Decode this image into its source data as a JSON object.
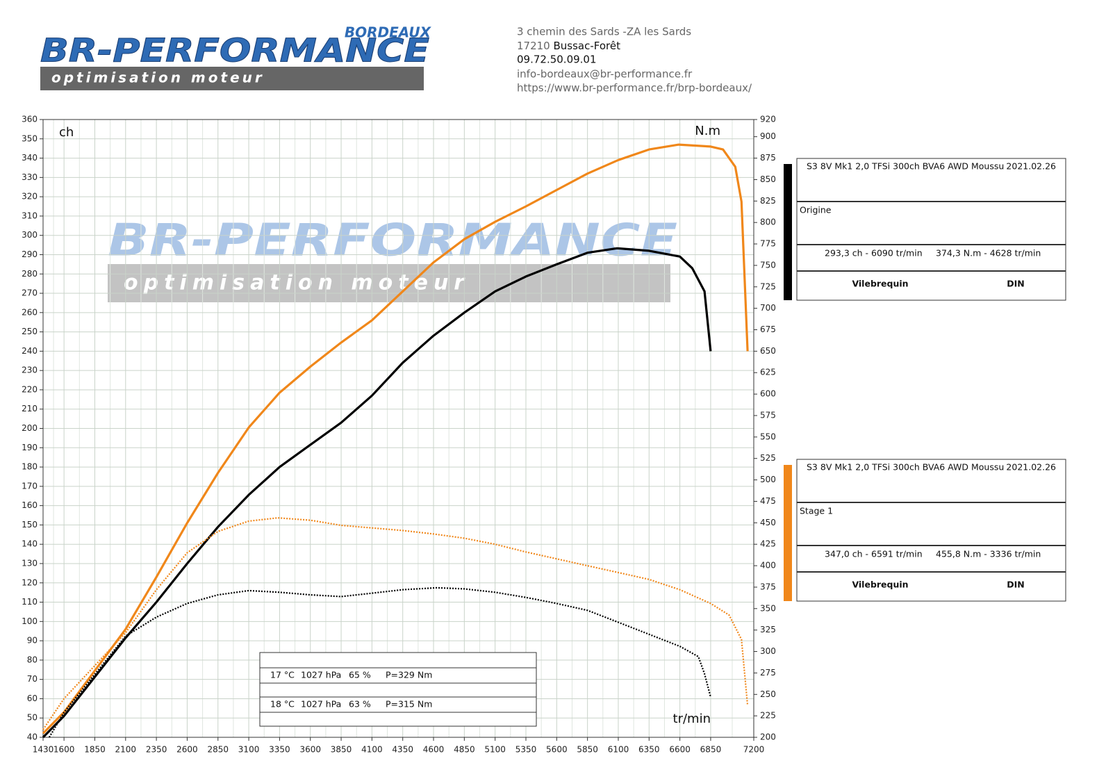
{
  "header": {
    "logo": {
      "city": "BORDEAUX",
      "brand": "BR-PERFORMANCE",
      "tagline": "optimisation moteur"
    },
    "address": {
      "street": "3 chemin des Sards -ZA les Sards",
      "zip": "17210",
      "city": "Bussac-Forêt",
      "phone": "09.72.50.09.01",
      "email": "info-bordeaux@br-performance.fr",
      "web": "https://www.br-performance.fr/brp-bordeaux/"
    }
  },
  "chart_data": {
    "type": "line",
    "ylabel": "ch",
    "y2label": "N.m",
    "xlabel": "tr/min",
    "grid": true,
    "xlim": [
      1430,
      7200
    ],
    "xticks": [
      1430,
      1600,
      1850,
      2100,
      2350,
      2600,
      2850,
      3100,
      3350,
      3600,
      3850,
      4100,
      4350,
      4600,
      4850,
      5100,
      5350,
      5600,
      5850,
      6100,
      6350,
      6600,
      6850,
      7200
    ],
    "ylim": [
      40,
      360
    ],
    "yticks": [
      40,
      50,
      60,
      70,
      80,
      90,
      100,
      110,
      120,
      130,
      140,
      150,
      160,
      170,
      180,
      190,
      200,
      210,
      220,
      230,
      240,
      250,
      260,
      270,
      280,
      290,
      300,
      310,
      320,
      330,
      340,
      350,
      360
    ],
    "y2lim": [
      200,
      920
    ],
    "y2ticks": [
      200,
      225,
      250,
      275,
      300,
      325,
      350,
      375,
      400,
      425,
      450,
      475,
      500,
      525,
      550,
      575,
      600,
      625,
      650,
      675,
      700,
      725,
      750,
      775,
      800,
      825,
      850,
      875,
      900,
      920
    ],
    "series": [
      {
        "color": "#000000",
        "style": "solid",
        "x": [
          1430,
          1600,
          2100,
          2350,
          2600,
          2850,
          3100,
          3350,
          3600,
          3850,
          4100,
          4350,
          4600,
          4850,
          5100,
          5350,
          5600,
          5850,
          6090,
          6350,
          6600,
          6700,
          6800,
          6850
        ],
        "values": [
          40,
          51,
          91.5,
          110,
          130,
          149,
          165.6,
          180,
          191.5,
          203,
          217,
          234,
          248,
          260,
          271,
          278.7,
          285,
          291,
          293.3,
          292,
          289,
          283,
          271,
          240
        ]
      },
      {
        "color": "#f0871a",
        "style": "solid",
        "x": [
          1430,
          1600,
          2100,
          2350,
          2600,
          2850,
          3100,
          3350,
          3600,
          3850,
          4100,
          4350,
          4600,
          4850,
          5100,
          5350,
          5600,
          5850,
          6100,
          6350,
          6591,
          6850,
          6950,
          7050,
          7100,
          7150
        ],
        "values": [
          42,
          53,
          96,
          123,
          151,
          177,
          200.5,
          218.5,
          232,
          244.5,
          256,
          271,
          286,
          298,
          307,
          315,
          323.5,
          332,
          339,
          344.5,
          347,
          346,
          344.5,
          335.5,
          317.5,
          240
        ]
      },
      {
        "color": "#000000",
        "style": "dotted",
        "axis": "y2",
        "x": [
          1480,
          1600,
          2100,
          2350,
          2600,
          2850,
          3100,
          3350,
          3600,
          3850,
          4100,
          4350,
          4628,
          4850,
          5100,
          5350,
          5600,
          5850,
          6100,
          6350,
          6600,
          6750,
          6800,
          6850
        ],
        "values": [
          200,
          229,
          318,
          340,
          356,
          366,
          371,
          369,
          366,
          364,
          368,
          372,
          374.3,
          373,
          369,
          363,
          356,
          348,
          334,
          320,
          306,
          294,
          274,
          247
        ]
      },
      {
        "color": "#f0871a",
        "style": "dotted",
        "axis": "y2",
        "x": [
          1430,
          1600,
          2100,
          2350,
          2600,
          2850,
          3100,
          3336,
          3600,
          3850,
          4100,
          4350,
          4600,
          4850,
          5100,
          5350,
          5600,
          5850,
          6100,
          6350,
          6600,
          6850,
          7000,
          7100,
          7150
        ],
        "values": [
          209,
          245,
          322,
          372,
          415,
          440,
          452,
          455.8,
          453,
          447,
          444,
          441,
          437,
          432,
          425,
          416,
          408,
          400,
          392,
          384,
          372,
          356,
          342.5,
          314,
          237
        ]
      }
    ],
    "legend": [
      {
        "color": "#000000",
        "title": "S3 8V Mk1 2,0 TFSi 300ch BVA6 AWD Moussu",
        "date": "2021.02.26",
        "name": "Origine",
        "power_peak": "293,3 ch - 6090 tr/min",
        "torque_peak": "374,3 N.m - 4628 tr/min",
        "mode": "Vilebrequin",
        "norm": "DIN"
      },
      {
        "color": "#f0871a",
        "title": "S3 8V Mk1 2,0 TFSi 300ch BVA6 AWD Moussu",
        "date": "2021.02.26",
        "name": "Stage 1",
        "power_peak": "347,0 ch - 6591 tr/min",
        "torque_peak": "455,8 N.m - 3336 tr/min",
        "mode": "Vilebrequin",
        "norm": "DIN"
      }
    ],
    "conditions": [
      {
        "temperature": "17 °C",
        "pressure": "1027 hPa",
        "humidity": "65 %",
        "p": "P=329 Nm"
      },
      {
        "temperature": "18 °C",
        "pressure": "1027 hPa",
        "humidity": "63 %",
        "p": "P=315 Nm"
      }
    ]
  }
}
